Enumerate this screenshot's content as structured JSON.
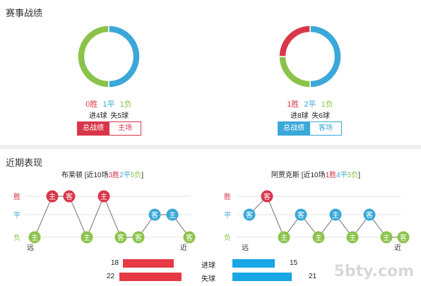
{
  "section1_title": "赛事战绩",
  "section2_title": "近期表现",
  "colors": {
    "win": "#d9364a",
    "draw": "#3aa8d8",
    "loss": "#8bc34a"
  },
  "teams": [
    {
      "id": "brighton",
      "donut": [
        0,
        1,
        1
      ],
      "record": {
        "win": "0胜",
        "draw": "1平",
        "loss": "1负"
      },
      "goals": {
        "scored": "进4球",
        "conceded": "失5球"
      },
      "tabs": {
        "total": "总战绩",
        "venue": "主场"
      }
    },
    {
      "id": "ajax",
      "donut": [
        1,
        2,
        1
      ],
      "record": {
        "win": "1胜",
        "draw": "2平",
        "loss": "1负"
      },
      "goals": {
        "scored": "进8球",
        "conceded": "失6球"
      },
      "tabs": {
        "total": "总战绩",
        "venue": "客场"
      }
    }
  ],
  "recent": [
    {
      "name": "布莱顿",
      "summary_pre": " [近10场",
      "w": "3胜",
      "d": "2平",
      "l": "5负",
      "summary_post": "]",
      "axis": {
        "win": "胜",
        "draw": "平",
        "loss": "负",
        "far": "远",
        "near": "近"
      },
      "results": [
        "负",
        "胜",
        "胜",
        "负",
        "胜",
        "负",
        "负",
        "平",
        "平",
        "负"
      ],
      "venues": [
        "主",
        "主",
        "客",
        "主",
        "主",
        "客",
        "客",
        "客",
        "主",
        "客"
      ]
    },
    {
      "name": "阿贾克斯",
      "summary_pre": " [近10场",
      "w": "1胜",
      "d": "4平",
      "l": "5负",
      "summary_post": "]",
      "axis": {
        "win": "胜",
        "draw": "平",
        "loss": "负",
        "far": "远",
        "near": "近"
      },
      "results": [
        "平",
        "胜",
        "负",
        "平",
        "负",
        "平",
        "负",
        "平",
        "负",
        "负"
      ],
      "venues": [
        "客",
        "客",
        "主",
        "客",
        "主",
        "主",
        "主",
        "客",
        "主",
        "客"
      ]
    }
  ],
  "stats": {
    "scored_label": "进球",
    "conceded_label": "失球",
    "left": {
      "scored": 18,
      "conceded": 22
    },
    "right": {
      "scored": 15,
      "conceded": 21
    }
  },
  "watermark": "5bty.com"
}
